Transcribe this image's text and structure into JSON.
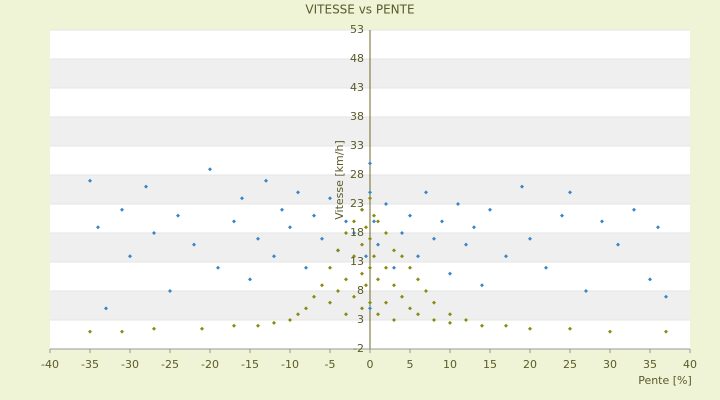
{
  "chart_data": {
    "type": "scatter",
    "title": "VITESSE vs PENTE",
    "x_label": "Pente [%]",
    "y_label": "Vitesse [km/h]",
    "xlim": [
      -40,
      40
    ],
    "xticks": [
      -40,
      -35,
      -30,
      -25,
      -20,
      -15,
      -10,
      -5,
      0,
      5,
      10,
      15,
      20,
      25,
      30,
      35,
      40
    ],
    "ylim": [
      -2,
      53
    ],
    "yticks": [
      -2,
      3,
      8,
      13,
      18,
      23,
      28,
      33,
      38,
      43,
      48,
      53
    ],
    "grid": true,
    "series": [
      {
        "color": "#3a85c8",
        "x": [
          -35,
          -34,
          -33,
          -31,
          -30,
          -28,
          -27,
          -25,
          -24,
          -22,
          -20,
          -19,
          -17,
          -16,
          -15,
          -14,
          -13,
          -12,
          -11,
          -10,
          -9,
          -8,
          -7,
          -6,
          -5,
          -4,
          -3,
          -2,
          -1,
          -0.5,
          0,
          0,
          0,
          0.5,
          1,
          2,
          3,
          4,
          5,
          6,
          7,
          8,
          9,
          10,
          11,
          12,
          13,
          14,
          15,
          17,
          19,
          20,
          22,
          24,
          25,
          27,
          29,
          31,
          33,
          35,
          36,
          37
        ],
        "values": [
          27,
          19,
          5,
          22,
          14,
          26,
          18,
          8,
          21,
          16,
          29,
          12,
          20,
          24,
          10,
          17,
          27,
          14,
          22,
          19,
          25,
          12,
          21,
          17,
          24,
          15,
          20,
          18,
          22,
          14,
          30,
          25,
          5,
          20,
          16,
          23,
          12,
          18,
          21,
          14,
          25,
          17,
          20,
          11,
          23,
          16,
          19,
          9,
          22,
          14,
          26,
          17,
          12,
          21,
          25,
          8,
          20,
          16,
          22,
          10,
          19,
          7
        ]
      },
      {
        "color": "#8a8a10",
        "x": [
          -35,
          -31,
          -27,
          -21,
          -17,
          -14,
          -12,
          -10,
          -9,
          -8,
          -7,
          -6,
          -5,
          -5,
          -4,
          -4,
          -3,
          -3,
          -3,
          -2,
          -2,
          -2,
          -1,
          -1,
          -1,
          -1,
          -0.5,
          -0.5,
          0,
          0,
          0,
          0,
          0.5,
          0.5,
          1,
          1,
          1,
          2,
          2,
          2,
          3,
          3,
          3,
          4,
          4,
          5,
          5,
          6,
          6,
          7,
          8,
          8,
          10,
          10,
          12,
          14,
          17,
          20,
          25,
          30,
          37
        ],
        "values": [
          1,
          1,
          1.5,
          1.5,
          2,
          2,
          2.5,
          3,
          4,
          5,
          7,
          9,
          12,
          6,
          15,
          8,
          18,
          10,
          4,
          20,
          14,
          7,
          22,
          16,
          11,
          5,
          19,
          9,
          24,
          17,
          12,
          6,
          21,
          14,
          20,
          10,
          4,
          18,
          12,
          6,
          15,
          9,
          3,
          14,
          7,
          12,
          5,
          10,
          4,
          8,
          6,
          3,
          4,
          2.5,
          3,
          2,
          2,
          1.5,
          1.5,
          1,
          1
        ]
      }
    ]
  }
}
